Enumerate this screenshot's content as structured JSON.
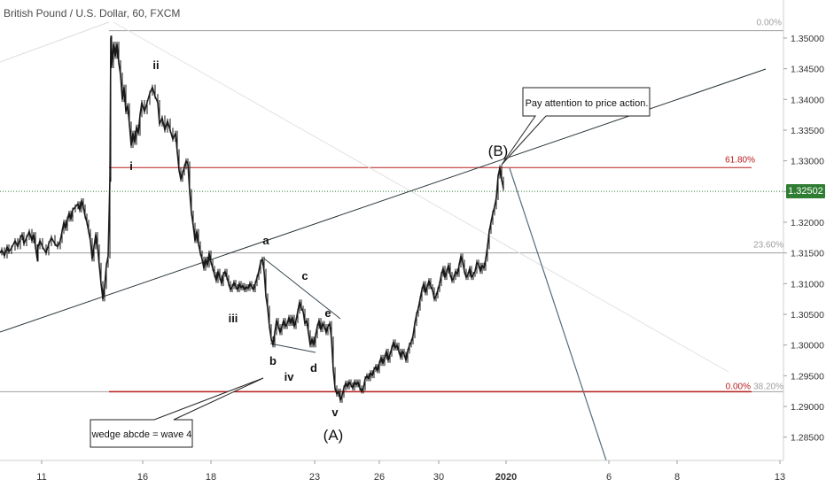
{
  "chart_title": "British Pound / U.S. Dollar, 60, FXCM",
  "chart_data": {
    "type": "line",
    "title": "British Pound / U.S. Dollar, 60, FXCM",
    "x_tick_labels": [
      "11",
      "16",
      "18",
      "23",
      "26",
      "30",
      "2020",
      "6",
      "8",
      "13"
    ],
    "y_tick_labels": [
      "1.35000",
      "1.34500",
      "1.34000",
      "1.33500",
      "1.33000",
      "1.32500",
      "1.32000",
      "1.31500",
      "1.31000",
      "1.30500",
      "1.30000",
      "1.29500",
      "1.29000",
      "1.28500"
    ],
    "ylim": [
      1.2812,
      1.3562
    ],
    "current_price": "1.32502",
    "series": [
      {
        "values": [
          [
            0,
            1.315
          ],
          [
            2,
            1.3155
          ],
          [
            5,
            1.3145
          ],
          [
            8,
            1.316
          ],
          [
            10,
            1.3152
          ],
          [
            13,
            1.3158
          ],
          [
            17,
            1.317
          ],
          [
            20,
            1.316
          ],
          [
            23,
            1.3175
          ],
          [
            25,
            1.318
          ],
          [
            27,
            1.3165
          ],
          [
            30,
            1.3175
          ],
          [
            33,
            1.3185
          ],
          [
            36,
            1.317
          ],
          [
            38,
            1.318
          ],
          [
            40,
            1.316
          ],
          [
            42,
            1.314
          ],
          [
            43,
            1.316
          ],
          [
            45,
            1.317
          ],
          [
            48,
            1.316
          ],
          [
            52,
            1.315
          ],
          [
            55,
            1.3165
          ],
          [
            58,
            1.3175
          ],
          [
            62,
            1.3165
          ],
          [
            65,
            1.316
          ],
          [
            68,
            1.317
          ],
          [
            70,
            1.3185
          ],
          [
            72,
            1.32
          ],
          [
            74,
            1.319
          ],
          [
            76,
            1.3205
          ],
          [
            78,
            1.3215
          ],
          [
            80,
            1.3205
          ],
          [
            82,
            1.322
          ],
          [
            85,
            1.3225
          ],
          [
            88,
            1.323
          ],
          [
            90,
            1.322
          ],
          [
            92,
            1.3235
          ],
          [
            94,
            1.3225
          ],
          [
            96,
            1.321
          ],
          [
            98,
            1.32
          ],
          [
            100,
            1.3185
          ],
          [
            102,
            1.317
          ],
          [
            104,
            1.314
          ],
          [
            106,
            1.316
          ],
          [
            108,
            1.318
          ],
          [
            110,
            1.316
          ],
          [
            112,
            1.313
          ],
          [
            114,
            1.31
          ],
          [
            116,
            1.3075
          ],
          [
            118,
            1.3095
          ],
          [
            120,
            1.313
          ],
          [
            122,
            1.3145
          ],
          [
            124,
            1.327
          ],
          [
            125,
            1.35
          ],
          [
            126,
            1.3455
          ],
          [
            128,
            1.349
          ],
          [
            130,
            1.347
          ],
          [
            132,
            1.349
          ],
          [
            134,
            1.346
          ],
          [
            136,
            1.344
          ],
          [
            138,
            1.34
          ],
          [
            140,
            1.342
          ],
          [
            142,
            1.338
          ],
          [
            144,
            1.339
          ],
          [
            146,
            1.336
          ],
          [
            148,
            1.3325
          ],
          [
            150,
            1.3345
          ],
          [
            152,
            1.333
          ],
          [
            154,
            1.3355
          ],
          [
            156,
            1.3345
          ],
          [
            158,
            1.3375
          ],
          [
            160,
            1.3395
          ],
          [
            163,
            1.338
          ],
          [
            166,
            1.3395
          ],
          [
            169,
            1.341
          ],
          [
            172,
            1.342
          ],
          [
            175,
            1.3405
          ],
          [
            178,
            1.3395
          ],
          [
            180,
            1.336
          ],
          [
            183,
            1.337
          ],
          [
            186,
            1.335
          ],
          [
            189,
            1.3365
          ],
          [
            192,
            1.335
          ],
          [
            195,
            1.3335
          ],
          [
            198,
            1.3345
          ],
          [
            200,
            1.3315
          ],
          [
            202,
            1.3285
          ],
          [
            204,
            1.327
          ],
          [
            206,
            1.328
          ],
          [
            208,
            1.329
          ],
          [
            210,
            1.33
          ],
          [
            212,
            1.3295
          ],
          [
            214,
            1.325
          ],
          [
            216,
            1.3215
          ],
          [
            218,
            1.3195
          ],
          [
            220,
            1.317
          ],
          [
            222,
            1.3185
          ],
          [
            224,
            1.3165
          ],
          [
            226,
            1.315
          ],
          [
            228,
            1.314
          ],
          [
            230,
            1.3125
          ],
          [
            232,
            1.314
          ],
          [
            234,
            1.313
          ],
          [
            236,
            1.315
          ],
          [
            238,
            1.3135
          ],
          [
            240,
            1.3125
          ],
          [
            242,
            1.3115
          ],
          [
            244,
            1.3105
          ],
          [
            246,
            1.312
          ],
          [
            248,
            1.311
          ],
          [
            250,
            1.31
          ],
          [
            252,
            1.3115
          ],
          [
            254,
            1.312
          ],
          [
            256,
            1.311
          ],
          [
            258,
            1.31
          ],
          [
            260,
            1.309
          ],
          [
            262,
            1.3095
          ],
          [
            264,
            1.3102
          ],
          [
            266,
            1.3095
          ],
          [
            268,
            1.309
          ],
          [
            270,
            1.31
          ],
          [
            272,
            1.3093
          ],
          [
            274,
            1.3097
          ],
          [
            276,
            1.309
          ],
          [
            278,
            1.3095
          ],
          [
            280,
            1.3092
          ],
          [
            282,
            1.31
          ],
          [
            284,
            1.3095
          ],
          [
            286,
            1.309
          ],
          [
            288,
            1.31
          ],
          [
            290,
            1.311
          ],
          [
            292,
            1.312
          ],
          [
            294,
            1.3135
          ],
          [
            296,
            1.314
          ],
          [
            298,
            1.312
          ],
          [
            300,
            1.308
          ],
          [
            302,
            1.306
          ],
          [
            304,
            1.303
          ],
          [
            306,
            1.301
          ],
          [
            308,
            1.3
          ],
          [
            310,
            1.302
          ],
          [
            312,
            1.304
          ],
          [
            314,
            1.303
          ],
          [
            316,
            1.302
          ],
          [
            318,
            1.303
          ],
          [
            320,
            1.304
          ],
          [
            322,
            1.303
          ],
          [
            324,
            1.3035
          ],
          [
            326,
            1.3045
          ],
          [
            328,
            1.3035
          ],
          [
            330,
            1.3045
          ],
          [
            332,
            1.303
          ],
          [
            334,
            1.304
          ],
          [
            336,
            1.3055
          ],
          [
            338,
            1.307
          ],
          [
            340,
            1.306
          ],
          [
            342,
            1.3055
          ],
          [
            344,
            1.3035
          ],
          [
            346,
            1.304
          ],
          [
            348,
            1.302
          ],
          [
            350,
            1.3
          ],
          [
            352,
            1.301
          ],
          [
            354,
            1.3
          ],
          [
            356,
            1.3015
          ],
          [
            358,
            1.303
          ],
          [
            360,
            1.304
          ],
          [
            362,
            1.3025
          ],
          [
            364,
            1.3035
          ],
          [
            366,
            1.303
          ],
          [
            368,
            1.302
          ],
          [
            370,
            1.303
          ],
          [
            372,
            1.3035
          ],
          [
            374,
            1.301
          ],
          [
            376,
            1.296
          ],
          [
            378,
            1.293
          ],
          [
            380,
            1.292
          ],
          [
            382,
            1.2925
          ],
          [
            384,
            1.291
          ],
          [
            386,
            1.2918
          ],
          [
            388,
            1.293
          ],
          [
            390,
            1.2938
          ],
          [
            392,
            1.2932
          ],
          [
            394,
            1.294
          ],
          [
            396,
            1.2935
          ],
          [
            398,
            1.293
          ],
          [
            400,
            1.294
          ],
          [
            402,
            1.2935
          ],
          [
            404,
            1.294
          ],
          [
            406,
            1.293
          ],
          [
            408,
            1.2925
          ],
          [
            410,
            1.293
          ],
          [
            412,
            1.2945
          ],
          [
            414,
            1.295
          ],
          [
            416,
            1.2945
          ],
          [
            418,
            1.2955
          ],
          [
            420,
            1.295
          ],
          [
            422,
            1.296
          ],
          [
            424,
            1.2965
          ],
          [
            426,
            1.2958
          ],
          [
            428,
            1.297
          ],
          [
            430,
            1.298
          ],
          [
            432,
            1.297
          ],
          [
            434,
            1.298
          ],
          [
            436,
            1.299
          ],
          [
            438,
            1.2975
          ],
          [
            440,
            1.2985
          ],
          [
            442,
            1.2995
          ],
          [
            444,
            1.3005
          ],
          [
            446,
            1.2995
          ],
          [
            448,
            1.3
          ],
          [
            450,
            1.299
          ],
          [
            452,
            1.298
          ],
          [
            454,
            1.299
          ],
          [
            456,
            1.2985
          ],
          [
            458,
            1.2975
          ],
          [
            460,
            1.299
          ],
          [
            462,
            1.3
          ],
          [
            464,
            1.3005
          ],
          [
            466,
            1.3015
          ],
          [
            468,
            1.3035
          ],
          [
            470,
            1.305
          ],
          [
            472,
            1.306
          ],
          [
            474,
            1.3075
          ],
          [
            476,
            1.309
          ],
          [
            478,
            1.31
          ],
          [
            480,
            1.3085
          ],
          [
            482,
            1.3095
          ],
          [
            484,
            1.3105
          ],
          [
            486,
            1.3095
          ],
          [
            488,
            1.309
          ],
          [
            490,
            1.3075
          ],
          [
            492,
            1.308
          ],
          [
            494,
            1.309
          ],
          [
            496,
            1.31
          ],
          [
            498,
            1.3115
          ],
          [
            500,
            1.3125
          ],
          [
            502,
            1.311
          ],
          [
            504,
            1.312
          ],
          [
            506,
            1.313
          ],
          [
            508,
            1.3115
          ],
          [
            510,
            1.3105
          ],
          [
            512,
            1.311
          ],
          [
            514,
            1.312
          ],
          [
            516,
            1.3115
          ],
          [
            518,
            1.313
          ],
          [
            520,
            1.3145
          ],
          [
            522,
            1.3135
          ],
          [
            524,
            1.312
          ],
          [
            526,
            1.311
          ],
          [
            528,
            1.3115
          ],
          [
            530,
            1.3125
          ],
          [
            532,
            1.311
          ],
          [
            534,
            1.3115
          ],
          [
            536,
            1.312
          ],
          [
            538,
            1.3135
          ],
          [
            540,
            1.313
          ],
          [
            542,
            1.312
          ],
          [
            544,
            1.313
          ],
          [
            546,
            1.3125
          ],
          [
            548,
            1.314
          ],
          [
            550,
            1.316
          ],
          [
            552,
            1.3185
          ],
          [
            554,
            1.32
          ],
          [
            556,
            1.3215
          ],
          [
            558,
            1.3225
          ],
          [
            560,
            1.324
          ],
          [
            562,
            1.3275
          ],
          [
            564,
            1.3289
          ],
          [
            566,
            1.327
          ],
          [
            568,
            1.3255
          ]
        ]
      }
    ],
    "horizontal_levels": [
      {
        "label": "0.00%",
        "price": 1.3512,
        "color": "#9e9e9e"
      },
      {
        "label": "61.80%",
        "price": 1.3289,
        "color": "#b71c1c"
      },
      {
        "label": "23.60%",
        "price": 1.315,
        "color": "#9e9e9e"
      },
      {
        "label": "0.00%",
        "price": 1.2924,
        "color": "#b71c1c"
      },
      {
        "label": "38.20%",
        "price": 1.2924,
        "color": "#9e9e9e"
      }
    ],
    "wave_labels": {
      "primary": [
        "i",
        "ii",
        "iii",
        "iv",
        "v"
      ],
      "wedge": [
        "a",
        "b",
        "c",
        "d",
        "e"
      ],
      "major": [
        "(A)",
        "(B)"
      ]
    },
    "callouts": {
      "price_action": "Pay attention to price action.",
      "wedge": "wedge abcde = wave 4"
    },
    "colors": {
      "candles": "#222222",
      "resistance_red": "#b71c1c",
      "current_price_green": "#2e7d32",
      "projection_line": "#546e7a",
      "trendline": "#263238"
    },
    "grid": false
  }
}
